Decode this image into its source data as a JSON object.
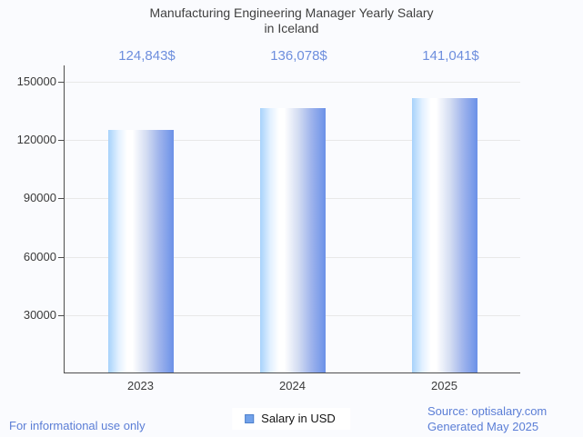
{
  "title": {
    "line1": "Manufacturing Engineering Manager Yearly Salary",
    "line2": "in Iceland"
  },
  "chart_data": {
    "type": "bar",
    "title": "Manufacturing Engineering Manager Yearly Salary in Iceland",
    "categories": [
      "2023",
      "2024",
      "2025"
    ],
    "series": [
      {
        "name": "Salary in USD",
        "values": [
          124843,
          136078,
          141041
        ]
      }
    ],
    "value_labels": [
      "124,843$",
      "136,078$",
      "141,041$"
    ],
    "xlabel": "",
    "ylabel": "",
    "y_ticks": [
      30000,
      60000,
      90000,
      120000,
      150000
    ],
    "y_tick_labels": [
      "30000",
      "60000",
      "90000",
      "120000",
      "150000"
    ],
    "ylim": [
      0,
      158400
    ],
    "grid": true,
    "legend_position": "bottom"
  },
  "legend": {
    "label": "Salary in USD"
  },
  "footer": {
    "left": "For informational use only",
    "source": "Source: optisalary.com",
    "generated": "Generated May 2025"
  },
  "colors": {
    "background": "#fafbfe",
    "title_text": "#404040",
    "value_label_text": "#6d8edd",
    "axis_line": "#4d4d4d",
    "gridline": "#e8e8e8",
    "tick_label_text": "#3a3a3a",
    "legend_marker_fill": "#72a2ea",
    "legend_marker_border": "#4e80cc",
    "footer_text": "#5b7ed6",
    "bar_gradient_left": "#a7d2fb",
    "bar_gradient_highlight": "#ffffff",
    "bar_gradient_right": "#6b91e8"
  }
}
